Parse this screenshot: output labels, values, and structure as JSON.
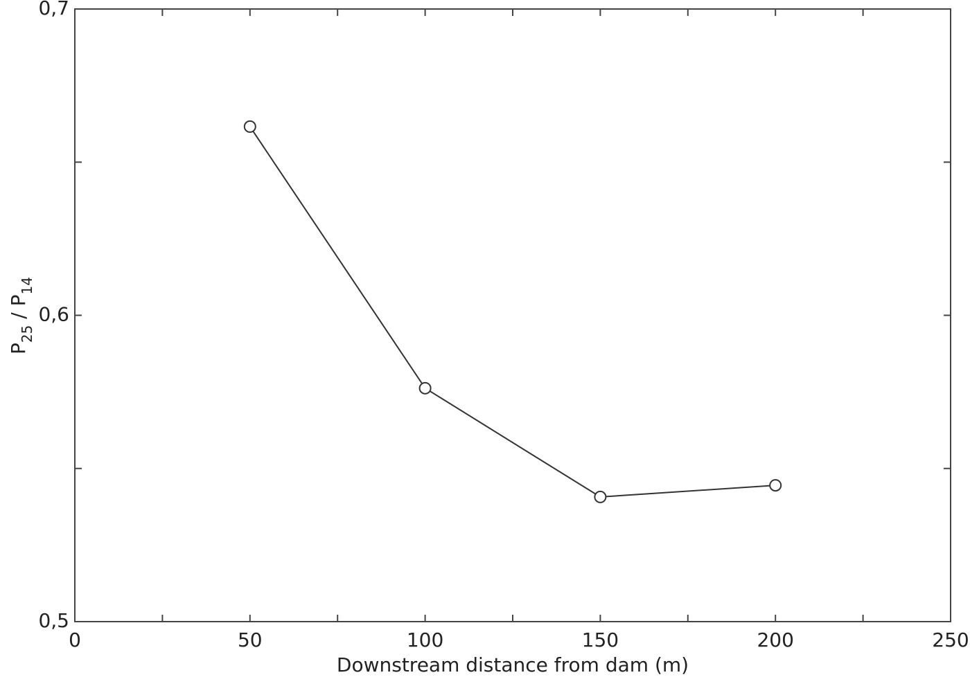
{
  "chart_data": {
    "type": "line",
    "xlabel": "Downstream distance from dam (m)",
    "ylabel": [
      {
        "text": "P"
      },
      {
        "text": "25",
        "sub": true
      },
      {
        "text": " / P"
      },
      {
        "text": "14",
        "sub": true
      }
    ],
    "x": [
      50,
      100,
      150,
      200
    ],
    "series": [
      {
        "color": "#333333",
        "values": [
          0.6616,
          0.5762,
          0.5407,
          0.5445
        ]
      }
    ],
    "xlim": [
      0,
      250
    ],
    "xticks": [
      0,
      50,
      100,
      150,
      200,
      250
    ],
    "xminor": [
      25,
      75,
      125,
      175,
      225
    ],
    "ylim": [
      0.5,
      0.7
    ],
    "yticks": [
      {
        "value": 0.5,
        "label": "0,5"
      },
      {
        "value": 0.6,
        "label": "0,6"
      },
      {
        "value": 0.7,
        "label": "0,7"
      }
    ],
    "yminor": [
      0.55,
      0.65
    ]
  }
}
